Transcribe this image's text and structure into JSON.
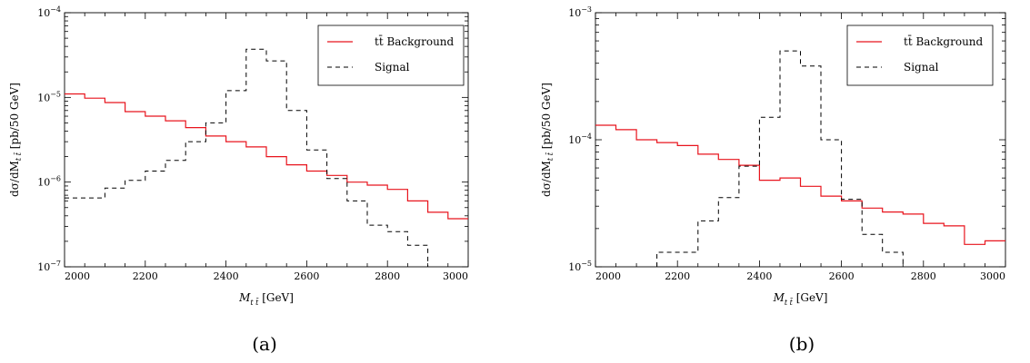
{
  "chart_data": [
    {
      "type": "line",
      "subtype": "step-histogram",
      "panel_label": "(a)",
      "xlabel": "M_{t t̄} [GeV]",
      "ylabel": "dσ/dM_{t t̄} [pb/50 GeV]",
      "xlim": [
        2000,
        3000
      ],
      "ylim": [
        1e-07,
        0.0001
      ],
      "yscale": "log",
      "xticks": [
        "2000",
        "2200",
        "2400",
        "2600",
        "2800",
        "3000"
      ],
      "yticks": [
        {
          "base": "10",
          "exp": "−7"
        },
        {
          "base": "10",
          "exp": "−6"
        },
        {
          "base": "10",
          "exp": "−5"
        },
        {
          "base": "10",
          "exp": "−4"
        }
      ],
      "legend_position": "top-right",
      "bin_edges": [
        2000,
        2050,
        2100,
        2150,
        2200,
        2250,
        2300,
        2350,
        2400,
        2450,
        2500,
        2550,
        2600,
        2650,
        2700,
        2750,
        2800,
        2850,
        2900,
        2950,
        3000
      ],
      "series": [
        {
          "name": "tt̄ Background",
          "color": "#e8141d",
          "style": "solid",
          "values": [
            1.1e-05,
            9.8e-06,
            8.7e-06,
            6.8e-06,
            6e-06,
            5.3e-06,
            4.4e-06,
            3.5e-06,
            3e-06,
            2.6e-06,
            2e-06,
            1.6e-06,
            1.35e-06,
            1.2e-06,
            1e-06,
            9.2e-07,
            8.2e-07,
            6e-07,
            4.4e-07,
            3.7e-07,
            3e-07
          ]
        },
        {
          "name": "Signal",
          "color": "#000000",
          "style": "dashed",
          "values": [
            6.5e-07,
            6.5e-07,
            8.5e-07,
            1.05e-06,
            1.35e-06,
            1.8e-06,
            3e-06,
            5e-06,
            1.2e-05,
            3.7e-05,
            2.7e-05,
            7e-06,
            2.4e-06,
            1.1e-06,
            6e-07,
            3.1e-07,
            2.6e-07,
            1.8e-07,
            null,
            null,
            null
          ]
        }
      ]
    },
    {
      "type": "line",
      "subtype": "step-histogram",
      "panel_label": "(b)",
      "xlabel": "M_{t t̄} [GeV]",
      "ylabel": "dσ/dM_{t t̄} [pb/50 GeV]",
      "xlim": [
        2000,
        3000
      ],
      "ylim": [
        1e-05,
        0.001
      ],
      "yscale": "log",
      "xticks": [
        "2000",
        "2200",
        "2400",
        "2600",
        "2800",
        "3000"
      ],
      "yticks": [
        {
          "base": "10",
          "exp": "−5"
        },
        {
          "base": "10",
          "exp": "−4"
        },
        {
          "base": "10",
          "exp": "−3"
        }
      ],
      "legend_position": "top-right",
      "bin_edges": [
        2000,
        2050,
        2100,
        2150,
        2200,
        2250,
        2300,
        2350,
        2400,
        2450,
        2500,
        2550,
        2600,
        2650,
        2700,
        2750,
        2800,
        2850,
        2900,
        2950,
        3000
      ],
      "series": [
        {
          "name": "tt̄ Background",
          "color": "#e8141d",
          "style": "solid",
          "values": [
            0.00013,
            0.00012,
            0.0001,
            9.5e-05,
            9e-05,
            7.7e-05,
            7e-05,
            6.3e-05,
            4.8e-05,
            5e-05,
            4.3e-05,
            3.6e-05,
            3.3e-05,
            2.9e-05,
            2.7e-05,
            2.6e-05,
            2.2e-05,
            2.1e-05,
            1.5e-05,
            1.6e-05,
            null
          ]
        },
        {
          "name": "Signal",
          "color": "#000000",
          "style": "dashed",
          "values": [
            null,
            null,
            null,
            1.3e-05,
            1.3e-05,
            2.3e-05,
            3.5e-05,
            6.2e-05,
            0.00015,
            0.0005,
            0.00038,
            0.0001,
            3.4e-05,
            1.8e-05,
            1.3e-05,
            null,
            null,
            null,
            null,
            null,
            null
          ]
        }
      ]
    }
  ]
}
